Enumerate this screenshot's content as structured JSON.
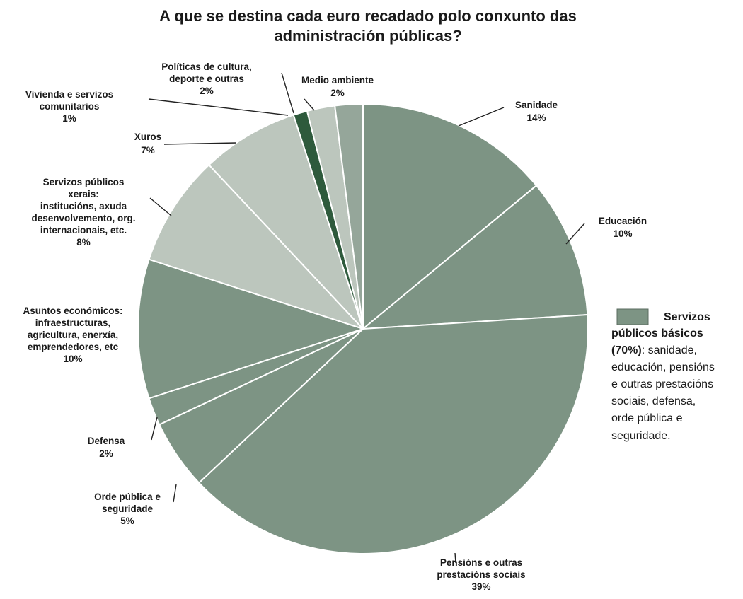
{
  "chart_data": {
    "type": "pie",
    "title": [
      "A que se destina cada euro recadado polo conxunto das",
      "administración públicas?"
    ],
    "slices": [
      {
        "label": [
          "Sanidade",
          "14%"
        ],
        "value": 14,
        "color": "#7d9484",
        "group": "basic"
      },
      {
        "label": [
          "Educación",
          "10%"
        ],
        "value": 10,
        "color": "#7d9484",
        "group": "basic"
      },
      {
        "label": [
          "Pensións e outras",
          "prestacións sociais",
          "39%"
        ],
        "value": 39,
        "color": "#7d9484",
        "group": "basic"
      },
      {
        "label": [
          "Orde pública e",
          "seguridade",
          "5%"
        ],
        "value": 5,
        "color": "#7d9484",
        "group": "basic"
      },
      {
        "label": [
          "Defensa",
          "2%"
        ],
        "value": 2,
        "color": "#7d9484",
        "group": "basic"
      },
      {
        "label": [
          "Asuntos económicos:",
          "infraestructuras,",
          "agricultura, enerxía,",
          "emprendedores, etc",
          "10%"
        ],
        "value": 10,
        "color": "#7d9484",
        "group": "other"
      },
      {
        "label": [
          "Servizos públicos",
          "xerais:",
          "institucións, axuda",
          "desenvolvemento, org.",
          "internacionais, etc.",
          "8%"
        ],
        "value": 8,
        "color": "#bcc6bd",
        "group": "other"
      },
      {
        "label": [
          "Xuros",
          "7%"
        ],
        "value": 7,
        "color": "#bcc6bd",
        "group": "other"
      },
      {
        "label": [
          "Vivienda e  servizos",
          "comunitarios",
          "1%"
        ],
        "value": 1,
        "color": "#2e5a3c",
        "group": "other"
      },
      {
        "label": [
          "Políticas de cultura,",
          "deporte e outras",
          "2%"
        ],
        "value": 2,
        "color": "#bcc6bd",
        "group": "other"
      },
      {
        "label": [
          "Medio ambiente",
          "2%"
        ],
        "value": 2,
        "color": "#95a69a",
        "group": "other"
      }
    ],
    "legend": {
      "swatch_color": "#7d9484",
      "lines": [
        {
          "strong": "Servizos",
          "rest": ""
        },
        {
          "strong": "públicos básicos",
          "rest": ""
        },
        {
          "strong": "(70%)",
          "rest": ": sanidade,"
        },
        {
          "strong": "",
          "rest": "educación, pensións"
        },
        {
          "strong": "",
          "rest": "e outras prestacións"
        },
        {
          "strong": "",
          "rest": "sociais, defensa,"
        },
        {
          "strong": "",
          "rest": "orde pública e"
        },
        {
          "strong": "",
          "rest": "seguridade."
        }
      ]
    }
  }
}
